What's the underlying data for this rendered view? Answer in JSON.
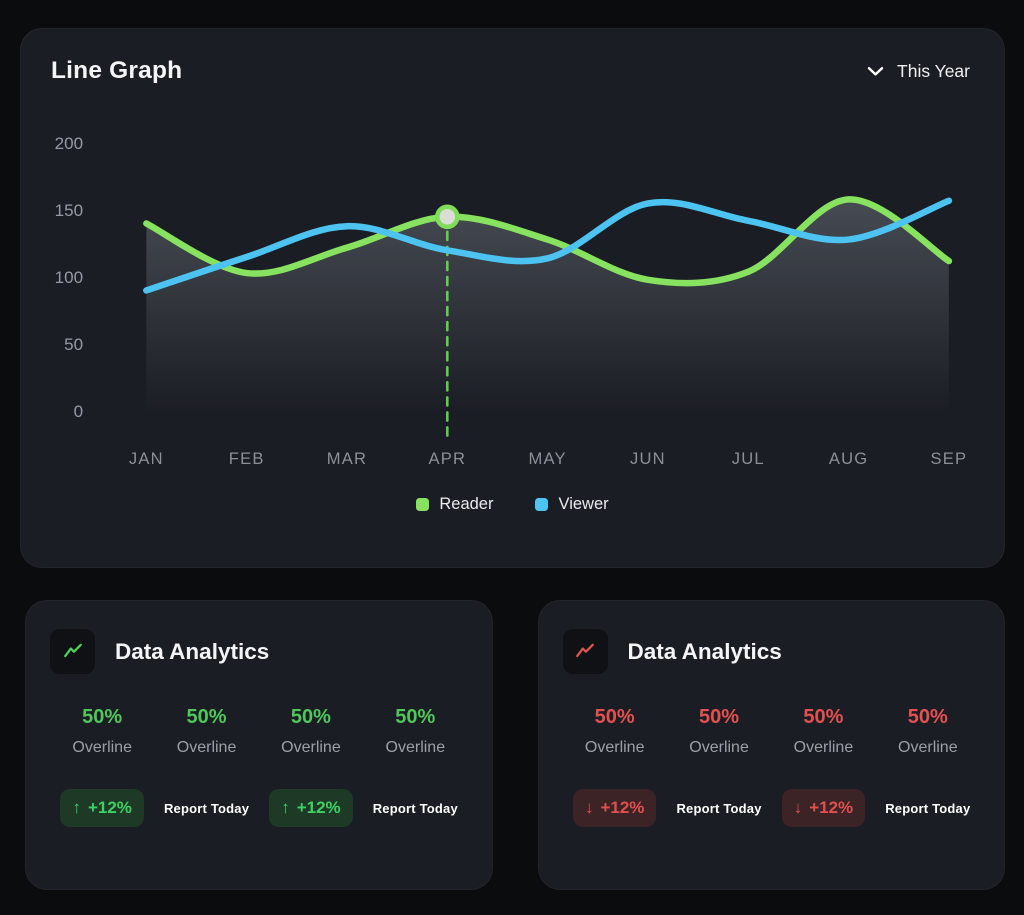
{
  "colors": {
    "page_bg": "#0b0c0e",
    "card_bg": "#1a1d23",
    "reader_green": "#87e25f",
    "viewer_blue": "#4cc3f1",
    "stat_green": "#4fc759",
    "stat_red": "#e25150",
    "axis_text": "#969ba3"
  },
  "line_graph_card": {
    "title": "Line Graph",
    "period": "This Year",
    "period_icon": "chevron-down",
    "legend": [
      {
        "label": "Reader",
        "color": "#87e25f"
      },
      {
        "label": "Viewer",
        "color": "#4cc3f1"
      }
    ]
  },
  "chart_data": {
    "type": "line",
    "title": "Line Graph",
    "categories": [
      "JAN",
      "FEB",
      "MAR",
      "APR",
      "MAY",
      "JUN",
      "JUL",
      "AUG",
      "SEP"
    ],
    "series": [
      {
        "name": "Reader",
        "color": "#87e25f",
        "values": [
          140,
          103,
          122,
          145,
          128,
          98,
          104,
          158,
          112
        ]
      },
      {
        "name": "Viewer",
        "color": "#4cc3f1",
        "values": [
          90,
          115,
          138,
          120,
          114,
          155,
          142,
          128,
          157
        ]
      }
    ],
    "ylim": [
      0,
      200
    ],
    "yticks": [
      200,
      150,
      100,
      50,
      0
    ],
    "xlabel": "",
    "ylabel": "",
    "grid": false,
    "legend_position": "bottom",
    "area_fill_under": "Reader",
    "highlight": {
      "series": "Reader",
      "category": "APR",
      "value": 145,
      "marker": true,
      "dashed_drop_line": true
    }
  },
  "analytics_cards": [
    {
      "title": "Data Analytics",
      "accent": "green",
      "icon": "trend-up-line",
      "stats": [
        {
          "value": "50%",
          "label": "Overline"
        },
        {
          "value": "50%",
          "label": "Overline"
        },
        {
          "value": "50%",
          "label": "Overline"
        },
        {
          "value": "50%",
          "label": "Overline"
        }
      ],
      "footer": [
        {
          "kind": "badge",
          "arrow": "↑",
          "text": "+12%"
        },
        {
          "kind": "report",
          "text": "Report Today"
        },
        {
          "kind": "badge",
          "arrow": "↑",
          "text": "+12%"
        },
        {
          "kind": "report",
          "text": "Report Today"
        }
      ]
    },
    {
      "title": "Data Analytics",
      "accent": "red",
      "icon": "trend-up-line",
      "stats": [
        {
          "value": "50%",
          "label": "Overline"
        },
        {
          "value": "50%",
          "label": "Overline"
        },
        {
          "value": "50%",
          "label": "Overline"
        },
        {
          "value": "50%",
          "label": "Overline"
        }
      ],
      "footer": [
        {
          "kind": "badge",
          "arrow": "↓",
          "text": "+12%"
        },
        {
          "kind": "report",
          "text": "Report Today"
        },
        {
          "kind": "badge",
          "arrow": "↓",
          "text": "+12%"
        },
        {
          "kind": "report",
          "text": "Report Today"
        }
      ]
    }
  ]
}
